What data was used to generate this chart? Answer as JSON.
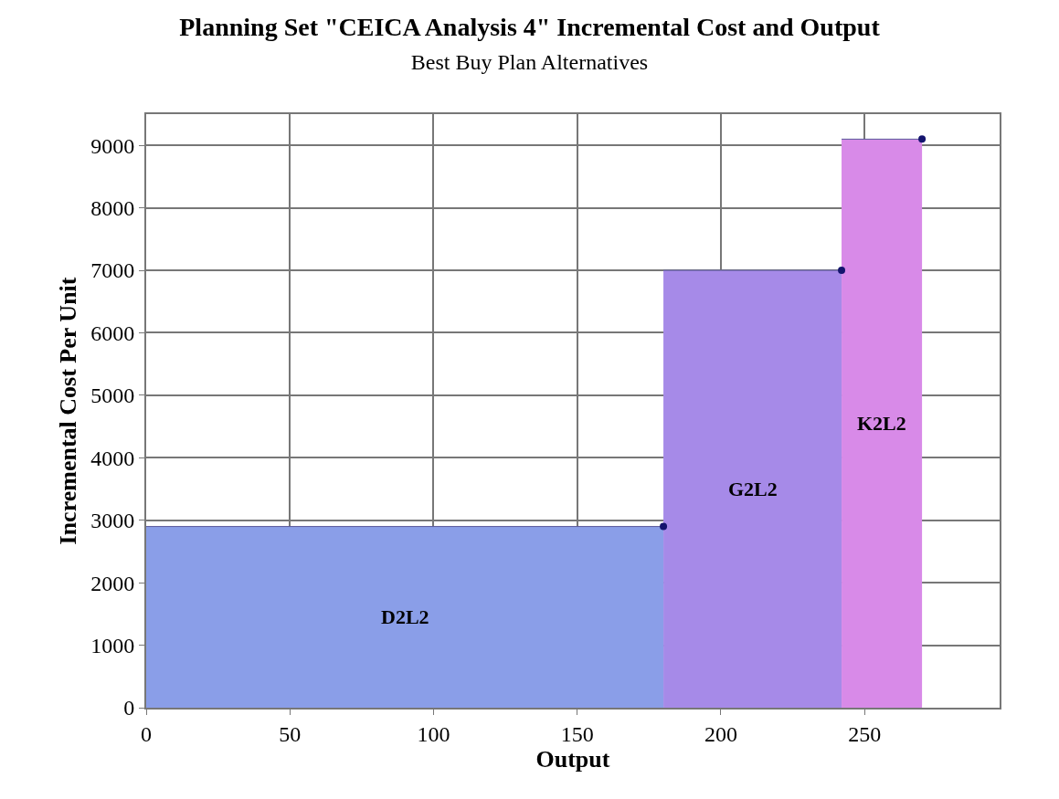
{
  "chart_data": {
    "type": "area",
    "title": "Planning Set \"CEICA Analysis 4\" Incremental Cost and Output",
    "subtitle": "Best Buy Plan Alternatives",
    "xlabel": "Output",
    "ylabel": "Incremental Cost Per Unit",
    "series": [
      {
        "name": "D2L2",
        "x": [
          0,
          180
        ],
        "values": [
          2900,
          2900
        ],
        "color": "#8a9ee8"
      },
      {
        "name": "G2L2",
        "x": [
          180,
          242
        ],
        "values": [
          7000,
          7000
        ],
        "color": "#a68ae8"
      },
      {
        "name": "K2L2",
        "x": [
          242,
          270
        ],
        "values": [
          9100,
          9100
        ],
        "color": "#d88ae8"
      },
      {
        "type": "scatter",
        "x": [
          180,
          242,
          270
        ],
        "values": [
          2900,
          7000,
          9100
        ],
        "color": "#14146e",
        "marker": "circle"
      }
    ],
    "xlim": [
      0,
      297
    ],
    "xticks": [
      0,
      50,
      100,
      150,
      200,
      250
    ],
    "ylim": [
      0,
      9500
    ],
    "yticks": [
      0,
      1000,
      2000,
      3000,
      4000,
      5000,
      6000,
      7000,
      8000,
      9000
    ],
    "grid": true
  }
}
